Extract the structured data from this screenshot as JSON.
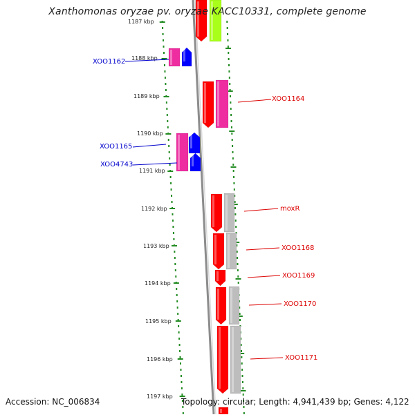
{
  "title": "Xanthomonas oryzae pv. oryzae KACC10331, complete genome",
  "accession": "Accession: NC_006834",
  "summary": "Topology: circular; Length: 4,941,439 bp; Genes: 4,122",
  "colors": {
    "red": "#ff0000",
    "magenta": "#ee2da0",
    "blue": "#0000ff",
    "green": "#a9ff19",
    "gray": "#bdbdbd",
    "tick": "#228b22",
    "left_label": "#0000cc",
    "right_label": "#dd0000",
    "backbone": "#8c8c8c"
  },
  "kbp_labels": [
    "1187 kbp",
    "1188 kbp",
    "1189 kbp",
    "1190 kbp",
    "1191 kbp",
    "1192 kbp",
    "1193 kbp",
    "1194 kbp",
    "1195 kbp",
    "1196 kbp",
    "1197 kbp"
  ],
  "left_gene_labels": [
    "XOO1162",
    "XOO1165",
    "XOO4743"
  ],
  "right_gene_labels": [
    "XOO1164",
    "moxR",
    "XOO1168",
    "XOO1169",
    "XOO1170",
    "XOO1171"
  ]
}
